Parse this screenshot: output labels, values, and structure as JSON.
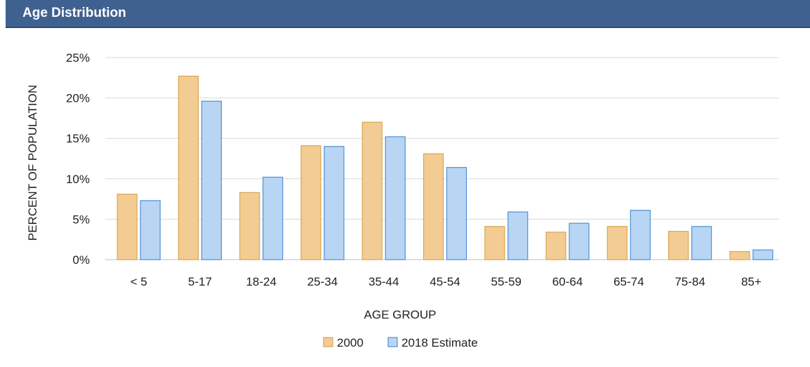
{
  "header": {
    "title": "Age Distribution"
  },
  "colors": {
    "header_bg": "#3f6190",
    "series_2000_fill": "#f3cc93",
    "series_2000_stroke": "#d9a552",
    "series_2018_fill": "#b8d6f3",
    "series_2018_stroke": "#4f8fd6",
    "grid": "#d9d9d9"
  },
  "chart_data": {
    "type": "bar",
    "categories": [
      "< 5",
      "5-17",
      "18-24",
      "25-34",
      "35-44",
      "45-54",
      "55-59",
      "60-64",
      "65-74",
      "75-84",
      "85+"
    ],
    "series": [
      {
        "name": "2000",
        "values": [
          8.1,
          22.7,
          8.3,
          14.1,
          17.0,
          13.1,
          4.1,
          3.4,
          4.1,
          3.5,
          1.0
        ]
      },
      {
        "name": "2018 Estimate",
        "values": [
          7.3,
          19.6,
          10.2,
          14.0,
          15.2,
          11.4,
          5.9,
          4.5,
          6.1,
          4.1,
          1.2
        ]
      }
    ],
    "xlabel": "AGE GROUP",
    "ylabel": "PERCENT OF POPULATION",
    "ylim": [
      0,
      25
    ],
    "yticks": [
      "0%",
      "5%",
      "10%",
      "15%",
      "20%",
      "25%"
    ],
    "grid": true,
    "legend_position": "bottom"
  }
}
